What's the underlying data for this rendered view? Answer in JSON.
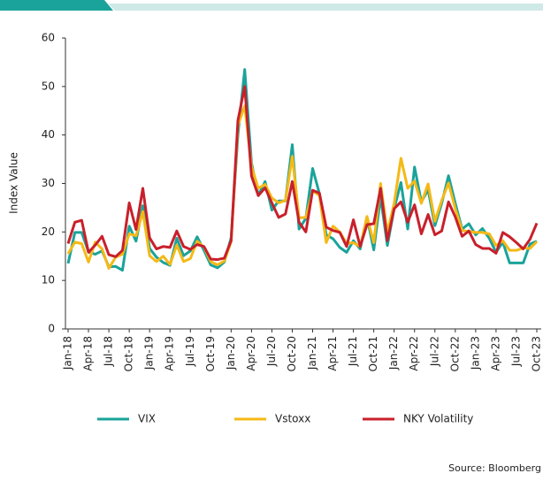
{
  "chart_data": {
    "type": "line",
    "y_label": "Index Value",
    "source": "Source: Bloomberg",
    "categories": [
      "Jan-18",
      null,
      null,
      "Apr-18",
      null,
      null,
      "Jul-18",
      null,
      null,
      "Oct-18",
      null,
      null,
      "Jan-19",
      null,
      null,
      "Apr-19",
      null,
      null,
      "Jul-19",
      null,
      null,
      "Oct-19",
      null,
      null,
      "Jan-20",
      null,
      null,
      "Apr-20",
      null,
      null,
      "Jul-20",
      null,
      null,
      "Oct-20",
      null,
      null,
      "Jan-21",
      null,
      null,
      "Apr-21",
      null,
      null,
      "Jul-21",
      null,
      null,
      "Oct-21",
      null,
      null,
      "Jan-22",
      null,
      null,
      "Apr-22",
      null,
      null,
      "Jul-22",
      null,
      null,
      "Oct-22",
      null,
      null,
      "Jan-23",
      null,
      null,
      "Apr-23",
      null,
      null,
      "Jul-23",
      null,
      null,
      "Oct-23"
    ],
    "series": [
      {
        "name": "VIX",
        "color": "#1aa39a",
        "values": [
          13.5,
          19.9,
          19.9,
          15.9,
          15.4,
          16.1,
          12.8,
          12.9,
          12.1,
          21.2,
          18.1,
          25.4,
          16.6,
          14.8,
          13.7,
          13.1,
          18.7,
          15.1,
          16.1,
          19.0,
          16.2,
          13.2,
          12.6,
          13.8,
          18.8,
          40.1,
          53.5,
          34.2,
          27.5,
          30.4,
          24.5,
          26.4,
          26.4,
          38.0,
          20.6,
          22.8,
          33.1,
          27.9,
          19.4,
          18.6,
          16.8,
          15.8,
          18.2,
          16.5,
          23.1,
          16.3,
          27.2,
          17.2,
          24.8,
          30.2,
          20.6,
          33.4,
          26.2,
          28.7,
          21.3,
          25.9,
          31.6,
          25.9,
          20.6,
          21.7,
          19.4,
          20.7,
          18.7,
          15.8,
          17.9,
          13.6,
          13.6,
          13.6,
          17.5,
          18.1
        ]
      },
      {
        "name": "Vstoxx",
        "color": "#f5b916",
        "values": [
          15.5,
          17.9,
          17.6,
          13.8,
          17.9,
          16.5,
          12.5,
          14.8,
          15.4,
          19.6,
          19.2,
          24.2,
          15.1,
          13.9,
          15.0,
          13.3,
          17.3,
          13.9,
          14.5,
          18.1,
          16.9,
          13.9,
          13.2,
          14.0,
          18.0,
          42.0,
          46.0,
          33.5,
          29.0,
          29.8,
          27.0,
          26.0,
          26.5,
          35.6,
          22.9,
          23.0,
          28.5,
          27.5,
          17.8,
          21.2,
          20.0,
          17.6,
          17.8,
          17.0,
          23.2,
          17.8,
          30.0,
          19.9,
          25.9,
          35.2,
          29.0,
          30.5,
          25.9,
          29.9,
          22.2,
          26.5,
          30.1,
          24.8,
          20.3,
          20.1,
          19.9,
          19.9,
          19.6,
          17.2,
          18.2,
          16.2,
          16.2,
          16.7,
          16.6,
          18.0
        ]
      },
      {
        "name": "NKY Volatility",
        "color": "#c8202b",
        "values": [
          17.6,
          22.0,
          22.4,
          15.8,
          17.3,
          19.1,
          15.3,
          14.9,
          16.2,
          26.0,
          20.5,
          29.0,
          18.8,
          16.5,
          17.0,
          16.8,
          20.2,
          17.0,
          16.4,
          17.4,
          17.0,
          14.4,
          14.3,
          14.6,
          18.2,
          43.0,
          50.0,
          31.5,
          27.5,
          29.1,
          26.0,
          23.0,
          23.7,
          30.4,
          22.0,
          20.0,
          28.6,
          28.0,
          21.0,
          20.3,
          19.9,
          17.0,
          22.5,
          17.0,
          21.5,
          21.7,
          29.0,
          18.2,
          24.8,
          26.2,
          22.0,
          25.6,
          19.6,
          23.6,
          19.4,
          20.2,
          26.2,
          23.1,
          19.1,
          20.2,
          17.4,
          16.6,
          16.6,
          15.6,
          19.9,
          19.0,
          17.8,
          16.5,
          18.5,
          21.8
        ]
      }
    ],
    "ylim": [
      0,
      60
    ],
    "yticks": [
      0,
      10,
      20,
      30,
      40,
      50,
      60
    ],
    "grid": false,
    "legend": "bottom"
  }
}
